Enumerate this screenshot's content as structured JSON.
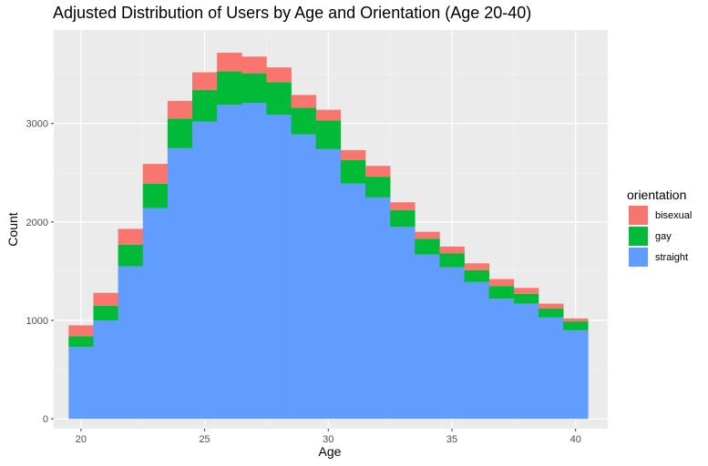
{
  "chart_data": {
    "type": "bar",
    "stacked": true,
    "title": "Adjusted Distribution of Users by Age and Orientation (Age 20-40)",
    "xlabel": "Age",
    "ylabel": "Count",
    "xlim": [
      18.9,
      41.3
    ],
    "ylim": [
      -100,
      3950
    ],
    "x_ticks": [
      20,
      25,
      30,
      35,
      40
    ],
    "y_ticks": [
      0,
      1000,
      2000,
      3000
    ],
    "grid": true,
    "legend_position": "right",
    "legend_title": "orientation",
    "categories": [
      20,
      21,
      22,
      23,
      24,
      25,
      26,
      27,
      28,
      29,
      30,
      31,
      32,
      33,
      34,
      35,
      36,
      37,
      38,
      39,
      40
    ],
    "series": [
      {
        "name": "straight",
        "color": "#619CFF",
        "values": [
          730,
          1000,
          1550,
          2140,
          2750,
          3020,
          3190,
          3210,
          3090,
          2890,
          2740,
          2390,
          2250,
          1950,
          1670,
          1540,
          1390,
          1220,
          1170,
          1030,
          900
        ]
      },
      {
        "name": "gay",
        "color": "#00BA38",
        "values": [
          110,
          150,
          220,
          250,
          300,
          320,
          340,
          300,
          330,
          270,
          290,
          240,
          210,
          170,
          160,
          140,
          120,
          130,
          100,
          90,
          90
        ]
      },
      {
        "name": "bisexual",
        "color": "#F8766D",
        "values": [
          110,
          130,
          160,
          200,
          180,
          180,
          190,
          170,
          150,
          130,
          110,
          100,
          110,
          80,
          70,
          70,
          70,
          70,
          60,
          50,
          30
        ]
      }
    ]
  }
}
